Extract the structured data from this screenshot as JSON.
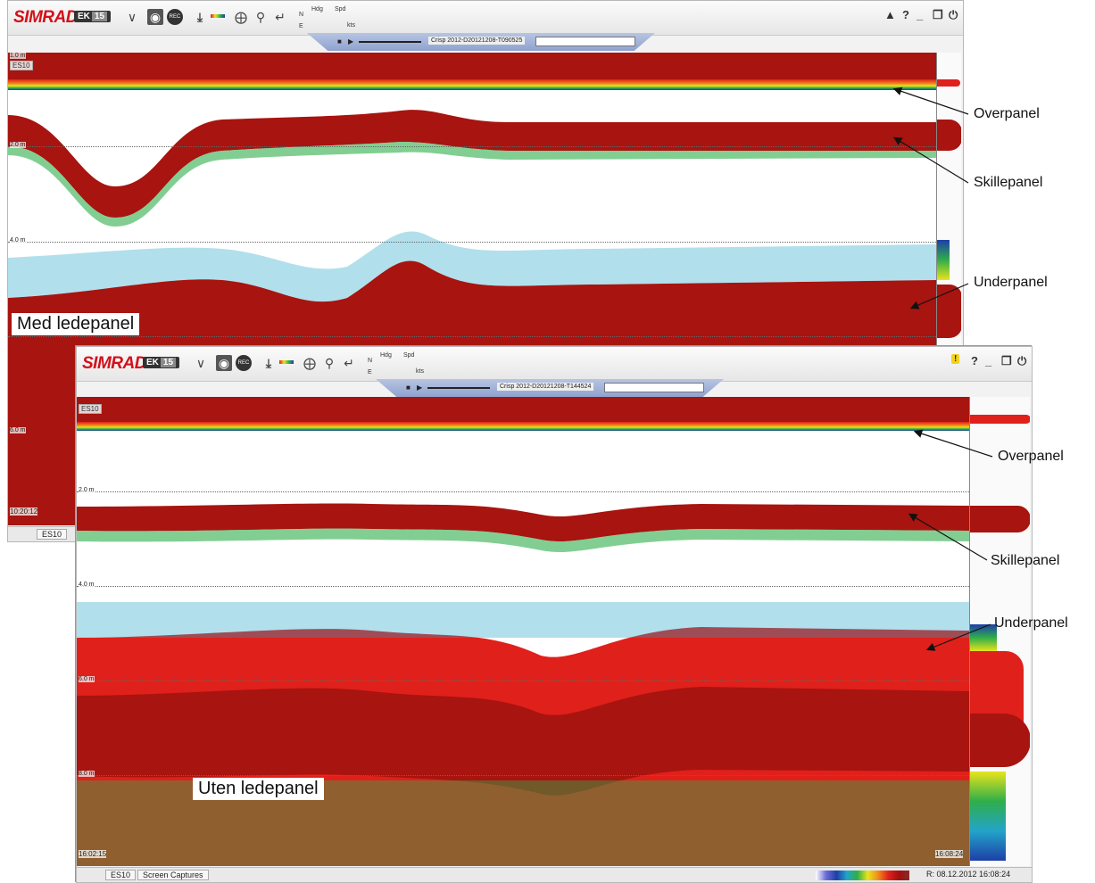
{
  "top_window": {
    "logo": "SIMRAD",
    "model": "EK",
    "model_num": "15",
    "hdg_label": "Hdg",
    "spd_label": "Spd",
    "kts_label": "kts",
    "n_label": "N",
    "e_label": "E",
    "replay_file": "Crisp 2012-D20121208-T090525",
    "channel": "ES10",
    "ranges": [
      "1.0 m",
      "2.0 m",
      "4.0 m",
      "6.0 m"
    ],
    "time_left": "10:20:12",
    "tab": "ES10",
    "overlay_label": "Med ledepanel"
  },
  "bottom_window": {
    "logo": "SIMRAD",
    "model": "EK",
    "model_num": "15",
    "hdg_label": "Hdg",
    "spd_label": "Spd",
    "kts_label": "kts",
    "n_label": "N",
    "e_label": "E",
    "replay_file": "Crisp 2012-D20121208-T144524",
    "channel": "ES10",
    "ranges": [
      "2.0 m",
      "4.0 m",
      "6.0 m",
      "8.0 m"
    ],
    "time_left": "16:02:15",
    "time_right": "16:08:24",
    "tabs": [
      "ES10",
      "Screen Captures"
    ],
    "status_date": "R: 08.12.2012  16:08:24",
    "overlay_label": "Uten ledepanel"
  },
  "annotations": {
    "overpanel": "Overpanel",
    "skillepanel": "Skillepanel",
    "underpanel": "Underpanel"
  },
  "toolbar_icons": {
    "expand": "double-chevron-down-icon",
    "camera": "camera-icon",
    "record": "record-icon",
    "depth": "depth-marker-icon",
    "color": "color-scale-icon",
    "target": "target-icon",
    "zoom": "magnifier-icon",
    "back": "back-arrow-icon",
    "warning": "warning-icon",
    "help": "help-icon",
    "minimize": "minimize-icon",
    "restore": "restore-icon",
    "power": "power-icon"
  },
  "colors": {
    "echo_red": "#a8140f",
    "brand_red": "#d3111a",
    "replay_blue": "#9fb0d8"
  }
}
